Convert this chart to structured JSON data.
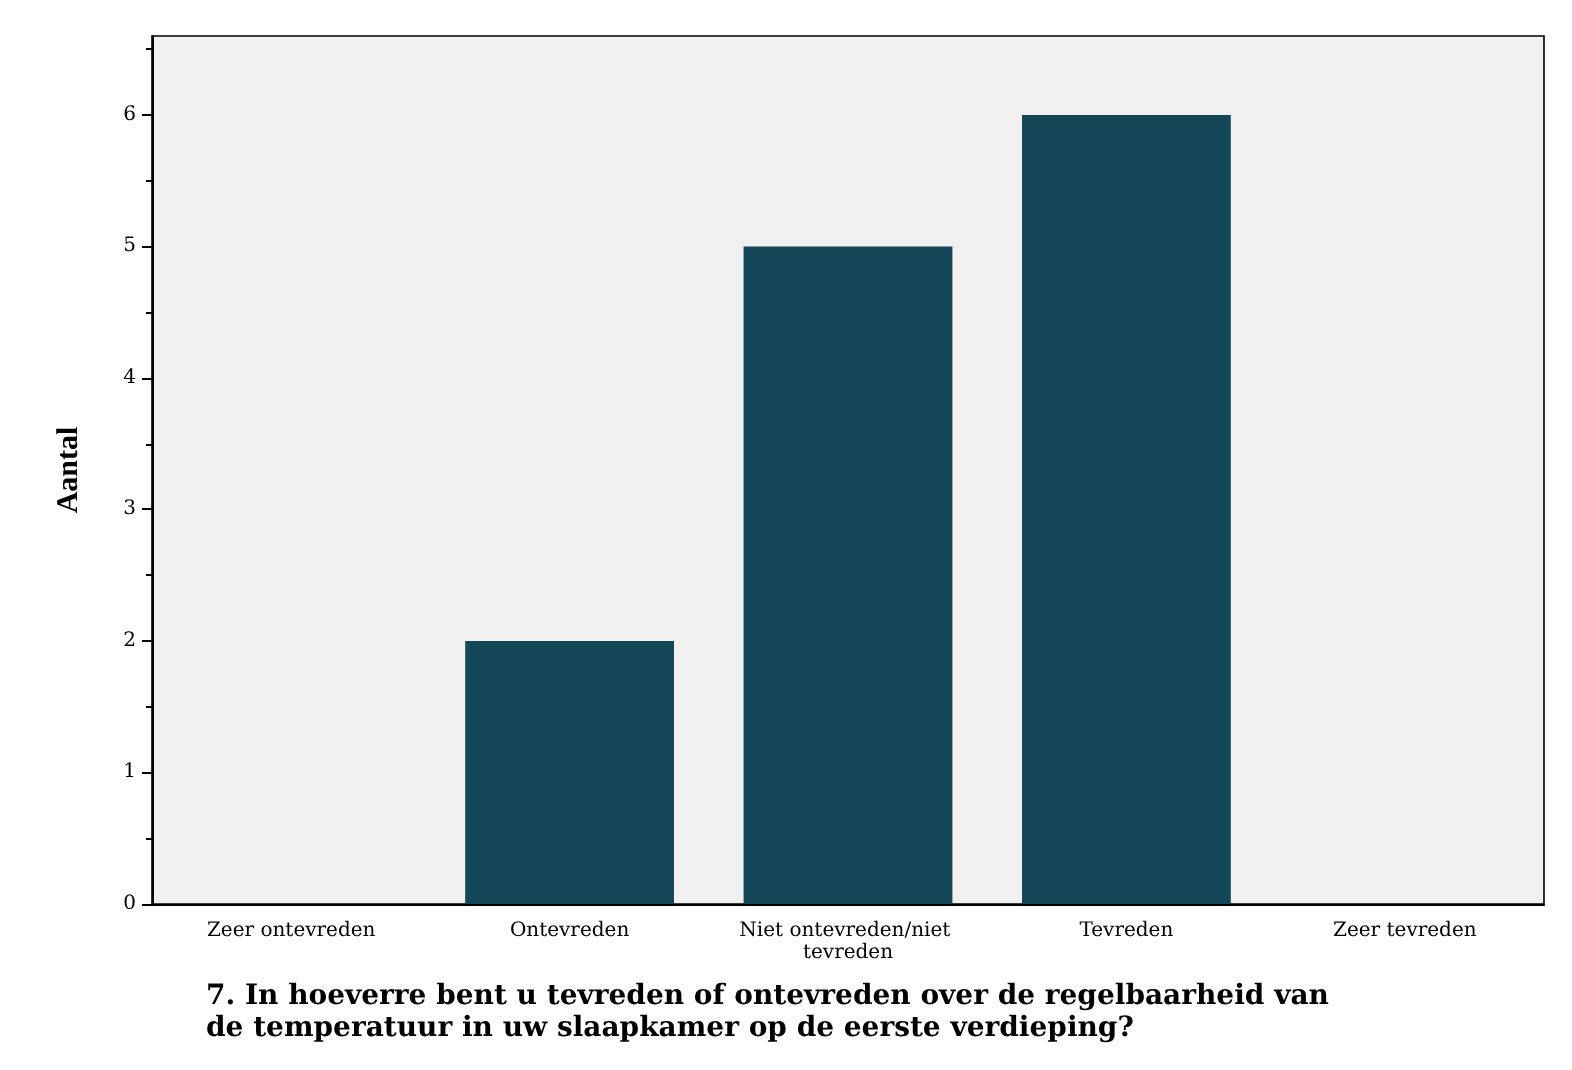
{
  "chart_data": {
    "type": "bar",
    "xlabel": "7. In hoeverre bent u tevreden of ontevreden over de regelbaarheid van de temperatuur in uw slaapkamer op de eerste verdieping?",
    "ylabel": "Aantal",
    "categories": [
      "Zeer ontevreden",
      "Ontevreden",
      "Niet ontevreden/niet tevreden",
      "Tevreden",
      "Zeer tevreden"
    ],
    "values": [
      0,
      2,
      5,
      6,
      0
    ],
    "color": "#134656",
    "ylim": [
      0,
      6.6
    ],
    "yticks": [
      0,
      1,
      2,
      3,
      4,
      5,
      6
    ],
    "grid": false
  }
}
